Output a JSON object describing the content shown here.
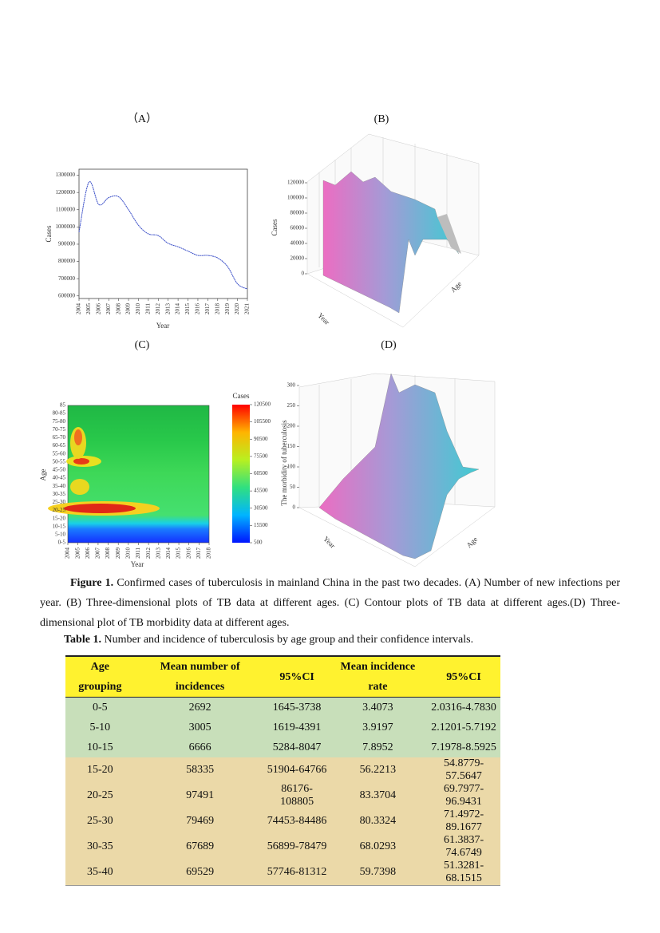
{
  "figure": {
    "panel_a": {
      "label": "（A）",
      "type": "line",
      "xlabel": "Year",
      "ylabel": "Cases",
      "x": [
        2004,
        2005,
        2006,
        2007,
        2008,
        2009,
        2010,
        2011,
        2012,
        2013,
        2014,
        2015,
        2016,
        2017,
        2018,
        2019,
        2020,
        2021
      ],
      "values": [
        970000,
        1260000,
        1130000,
        1170000,
        1175000,
        1100000,
        1010000,
        960000,
        950000,
        905000,
        885000,
        860000,
        835000,
        835000,
        820000,
        770000,
        670000,
        640000
      ],
      "xlim": [
        2004,
        2021
      ],
      "ylim": [
        585000,
        1335000
      ],
      "xticks": [
        2004,
        2005,
        2006,
        2007,
        2008,
        2009,
        2010,
        2011,
        2012,
        2013,
        2014,
        2015,
        2016,
        2017,
        2018,
        2019,
        2020,
        2021
      ],
      "yticks": [
        600000,
        700000,
        800000,
        900000,
        1000000,
        1100000,
        1200000,
        1300000
      ],
      "color": "#3b4fc8"
    },
    "panel_b": {
      "label": "(B)",
      "zlabel": "Cases",
      "xlabel": "Year",
      "ylabel": "Age",
      "zlim": [
        0,
        120000
      ],
      "zticks": [
        0,
        20000,
        40000,
        60000,
        80000,
        100000,
        120000
      ]
    },
    "panel_c": {
      "label": "(C)",
      "xlabel": "Year",
      "ylabel": "Age",
      "colorbar_title": "Cases",
      "xlim": [
        2004,
        2018
      ],
      "xticks": [
        2004,
        2005,
        2006,
        2007,
        2008,
        2009,
        2010,
        2011,
        2012,
        2013,
        2014,
        2015,
        2016,
        2017,
        2018
      ],
      "categories": [
        "0-5",
        "5-10",
        "10-15",
        "15-20",
        "20-25",
        "25-30",
        "30-35",
        "35-40",
        "40-45",
        "45-50",
        "50-55",
        "55-60",
        "60-65",
        "65-70",
        "70-75",
        "75-80",
        "80-85",
        "85"
      ],
      "clim": [
        500,
        120500
      ],
      "cticks": [
        500,
        15500,
        30500,
        45500,
        60500,
        75500,
        90500,
        105500,
        120500
      ]
    },
    "panel_d": {
      "label": "(D)",
      "zlabel": "The morbidity of tuberculosis",
      "xlabel": "Year",
      "ylabel": "Age",
      "zlim": [
        0,
        300
      ],
      "zticks": [
        0,
        50,
        100,
        150,
        200,
        250,
        300
      ]
    },
    "caption": {
      "label": "Figure 1.",
      "text": "Confirmed cases of tuberculosis in mainland China in the past two decades. (A) Number of new infections per year. (B) Three-dimensional plots of TB data at different ages. (C) Contour plots of TB data at different ages.(D) Three-dimensional plot of TB morbidity data at different ages."
    }
  },
  "table": {
    "caption": {
      "label": "Table 1.",
      "text": "Number and incidence of tuberculosis by age group and their confidence intervals."
    },
    "header": [
      "Age grouping",
      "Mean number of incidences",
      "95%CI",
      "Mean incidence rate",
      "95%CI"
    ],
    "rows": [
      [
        "0-5",
        "2692",
        "1645-3738",
        "3.4073",
        "2.0316-4.7830"
      ],
      [
        "5-10",
        "3005",
        "1619-4391",
        "3.9197",
        "2.1201-5.7192"
      ],
      [
        "10-15",
        "6666",
        "5284-8047",
        "7.8952",
        "7.1978-8.5925"
      ],
      [
        "15-20",
        "58335",
        "51904-64766",
        "56.2213",
        "54.8779-57.5647"
      ],
      [
        "20-25",
        "97491",
        "86176-108805",
        "83.3704",
        "69.7977-96.9431"
      ],
      [
        "25-30",
        "79469",
        "74453-84486",
        "80.3324",
        "71.4972-89.1677"
      ],
      [
        "30-35",
        "67689",
        "56899-78479",
        "68.0293",
        "61.3837-74.6749"
      ],
      [
        "35-40",
        "69529",
        "57746-81312",
        "59.7398",
        "51.3281-68.1515"
      ]
    ]
  }
}
